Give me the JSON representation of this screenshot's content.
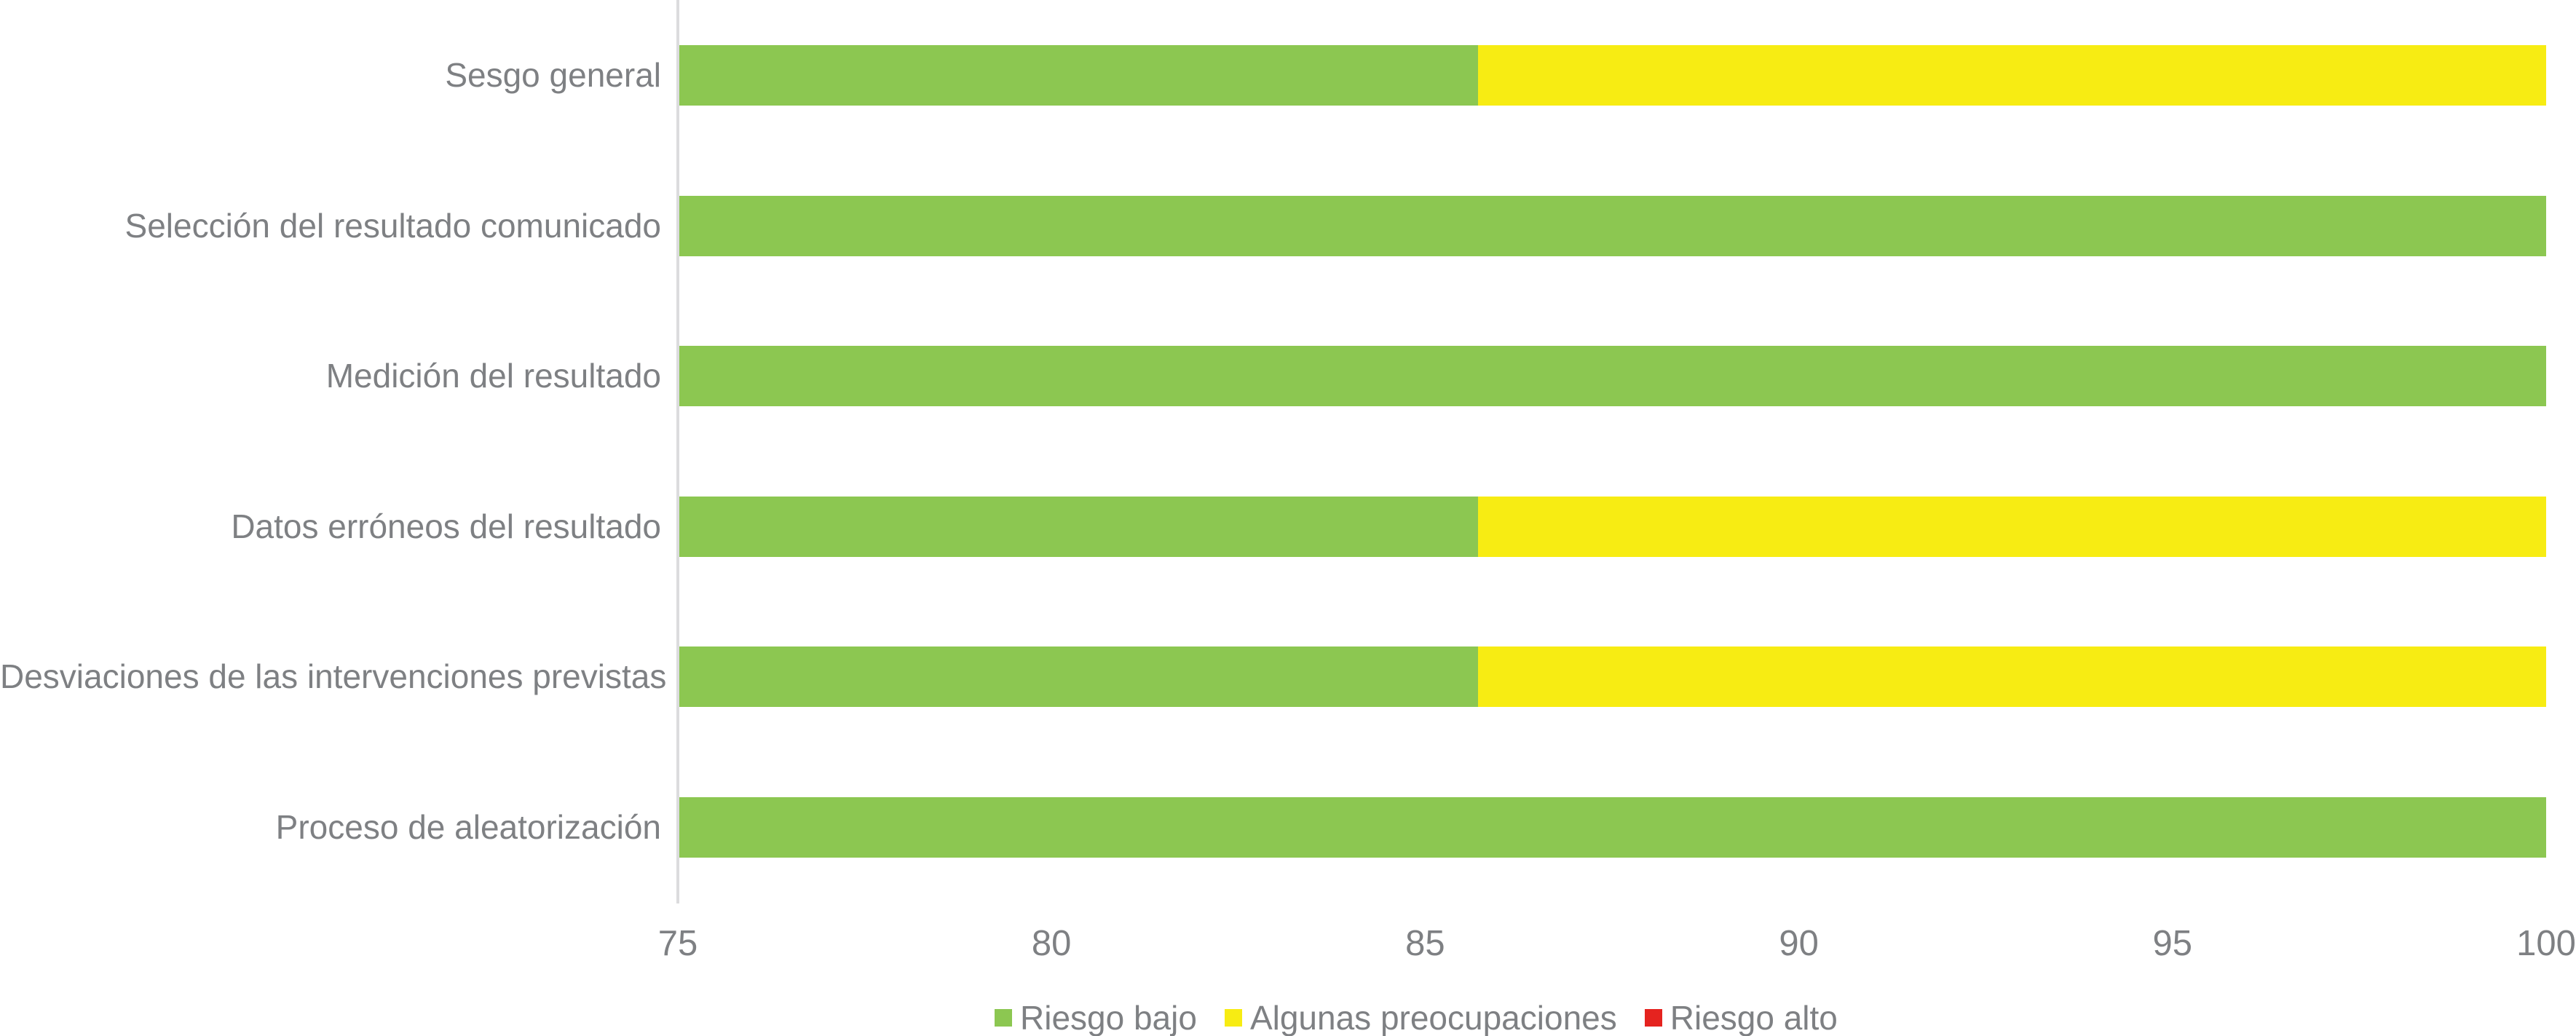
{
  "chart_data": {
    "type": "bar",
    "orientation": "horizontal-stacked",
    "title": "",
    "xlabel": "",
    "ylabel": "",
    "grid": false,
    "categories": [
      "Sesgo general",
      "Selección del resultado comunicado",
      "Medición del resultado",
      "Datos erróneos del resultado",
      "Desviaciones de las intervenciones previstas",
      "Proceso de aleatorización"
    ],
    "series": [
      {
        "name": "Riesgo bajo",
        "color": "#8CC751",
        "values": [
          85.7,
          100,
          100,
          85.7,
          85.7,
          100
        ]
      },
      {
        "name": "Algunas preocupaciones",
        "color": "#F7EC13",
        "values": [
          14.3,
          0,
          0,
          14.3,
          14.3,
          0
        ]
      },
      {
        "name": "Riesgo alto",
        "color": "#E5231F",
        "values": [
          0,
          0,
          0,
          0,
          0,
          0
        ]
      }
    ],
    "x_axis": {
      "min": 75,
      "max": 100,
      "step": 5,
      "ticks": [
        "75",
        "80",
        "85",
        "90",
        "95",
        "100"
      ]
    },
    "legend": {
      "position": "bottom",
      "items": [
        "Riesgo bajo",
        "Algunas preocupaciones",
        "Riesgo alto"
      ]
    }
  },
  "colors": {
    "axis_line": "#DCDCDE",
    "text": "#7E8083",
    "background": "#FFFFFF"
  }
}
